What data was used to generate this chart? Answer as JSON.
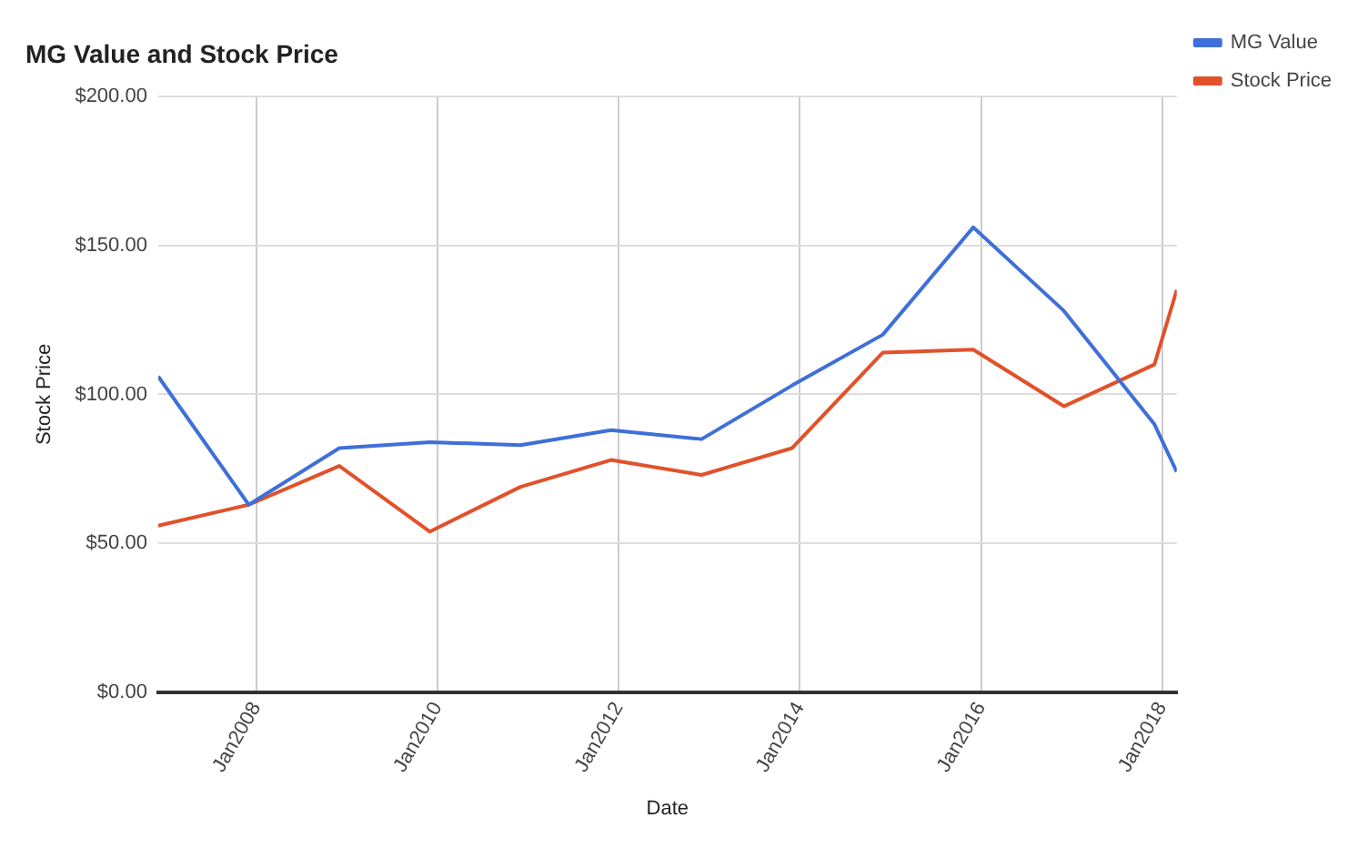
{
  "chart_data": {
    "type": "line",
    "title": "MG Value and Stock Price",
    "xlabel": "Date",
    "ylabel": "Stock Price",
    "x": [
      "2006-12",
      "2007-12",
      "2008-12",
      "2009-12",
      "2010-12",
      "2011-12",
      "2012-12",
      "2013-12",
      "2014-12",
      "2015-12",
      "2016-12",
      "2017-12",
      "2018-03"
    ],
    "series": [
      {
        "name": "MG Value",
        "color": "#3f6fd8",
        "values": [
          106,
          63,
          82,
          84,
          83,
          88,
          85,
          103,
          120,
          156,
          128,
          90,
          74
        ]
      },
      {
        "name": "Stock Price",
        "color": "#e2512a",
        "values": [
          56,
          63,
          76,
          54,
          69,
          78,
          73,
          82,
          114,
          115,
          96,
          110,
          135
        ]
      }
    ],
    "xlim": [
      "2006-12",
      "2018-03"
    ],
    "xticks": [
      {
        "value": "2008-01",
        "label": "Jan2008"
      },
      {
        "value": "2010-01",
        "label": "Jan2010"
      },
      {
        "value": "2012-01",
        "label": "Jan2012"
      },
      {
        "value": "2014-01",
        "label": "Jan2014"
      },
      {
        "value": "2016-01",
        "label": "Jan2016"
      },
      {
        "value": "2018-01",
        "label": "Jan2018"
      }
    ],
    "ylim": [
      0,
      200
    ],
    "yticks": [
      {
        "value": 0,
        "label": "$0.00"
      },
      {
        "value": 50,
        "label": "$50.00"
      },
      {
        "value": 100,
        "label": "$100.00"
      },
      {
        "value": 150,
        "label": "$150.00"
      },
      {
        "value": 200,
        "label": "$200.00"
      }
    ],
    "grid": true,
    "legend": "top right",
    "marker": "none",
    "line_style": "solid"
  }
}
